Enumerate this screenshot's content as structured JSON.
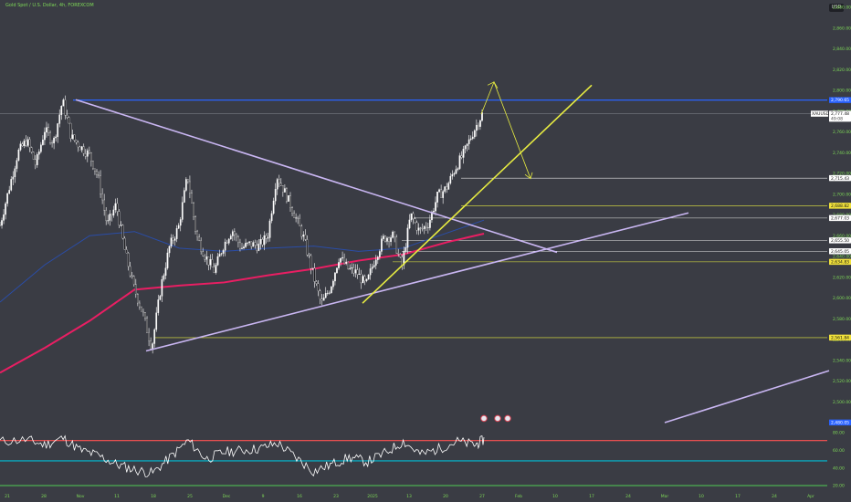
{
  "header": {
    "title": "Gold Spot / U.S. Dollar, 4h, FOREXCOM",
    "currency": "USD"
  },
  "colors": {
    "background": "#3a3c44",
    "candle": "#ffffff",
    "resistance_line": "#2962ff",
    "triangle_lines": "#c9b6f2",
    "trend_line": "#e7ec41",
    "ma_fast": "#e91e63",
    "ma_slow": "#2a4da8",
    "rsi_line": "#ffffff",
    "rsi_upper": "#ff5252",
    "rsi_mid": "#00bcd4",
    "rsi_lower": "#4caf50"
  },
  "chart_data": {
    "type": "candlestick",
    "symbol": "XAUUSD",
    "price_axis": {
      "min": 2460,
      "max": 2880,
      "ticks": [
        "2,880.00",
        "2,860.00",
        "2,840.00",
        "2,820.00",
        "2,800.00",
        "2,780.00",
        "2,760.00",
        "2,740.00",
        "2,720.00",
        "2,700.00",
        "2,680.00",
        "2,660.00",
        "2,640.00",
        "2,620.00",
        "2,600.00",
        "2,580.00",
        "2,560.00",
        "2,540.00",
        "2,520.00",
        "2,500.00",
        "2,480.00"
      ]
    },
    "time_axis": {
      "labels": [
        "21",
        "28",
        "Nov",
        "11",
        "18",
        "25",
        "Dec",
        "9",
        "16",
        "23",
        "2025",
        "13",
        "20",
        "27",
        "Feb",
        "10",
        "17",
        "24",
        "Mar",
        "10",
        "17",
        "24",
        "Apr"
      ]
    },
    "price_tags": [
      {
        "label": "2,790.65",
        "value": 2790.65,
        "style": "blue"
      },
      {
        "label": "2,777.48",
        "value": 2777.48,
        "style": "white",
        "symbol": "XAUUSD",
        "countdown": "49:08"
      },
      {
        "label": "2,715.43",
        "value": 2715.43,
        "style": "white"
      },
      {
        "label": "2,688.82",
        "value": 2688.82,
        "style": "yellow"
      },
      {
        "label": "2,677.03",
        "value": 2677.03,
        "style": "white"
      },
      {
        "label": "2,655.50",
        "value": 2655.5,
        "style": "white"
      },
      {
        "label": "2,645.05",
        "value": 2645.05,
        "style": "white"
      },
      {
        "label": "2,634.83",
        "value": 2634.83,
        "style": "yellow"
      },
      {
        "label": "2,561.84",
        "value": 2561.84,
        "style": "yellow"
      },
      {
        "label": "2,480.05",
        "value": 2480.05,
        "style": "blue"
      }
    ],
    "price_path": [
      [
        0,
        2670
      ],
      [
        1,
        2705
      ],
      [
        2,
        2740
      ],
      [
        3,
        2752
      ],
      [
        4,
        2728
      ],
      [
        5,
        2762
      ],
      [
        6,
        2750
      ],
      [
        7,
        2790
      ],
      [
        8,
        2755
      ],
      [
        9,
        2746
      ],
      [
        10,
        2738
      ],
      [
        11,
        2716
      ],
      [
        12,
        2670
      ],
      [
        13,
        2690
      ],
      [
        14,
        2645
      ],
      [
        15,
        2610
      ],
      [
        16,
        2585
      ],
      [
        17,
        2552
      ],
      [
        18,
        2610
      ],
      [
        19,
        2650
      ],
      [
        20,
        2668
      ],
      [
        21,
        2718
      ],
      [
        22,
        2660
      ],
      [
        23,
        2640
      ],
      [
        24,
        2626
      ],
      [
        25,
        2650
      ],
      [
        26,
        2666
      ],
      [
        27,
        2648
      ],
      [
        28,
        2652
      ],
      [
        29,
        2650
      ],
      [
        30,
        2660
      ],
      [
        31,
        2718
      ],
      [
        32,
        2700
      ],
      [
        33,
        2680
      ],
      [
        34,
        2658
      ],
      [
        35,
        2625
      ],
      [
        36,
        2594
      ],
      [
        37,
        2610
      ],
      [
        38,
        2640
      ],
      [
        39,
        2628
      ],
      [
        40,
        2624
      ],
      [
        41,
        2612
      ],
      [
        42,
        2638
      ],
      [
        43,
        2658
      ],
      [
        44,
        2660
      ],
      [
        45,
        2630
      ],
      [
        46,
        2680
      ],
      [
        47,
        2664
      ],
      [
        48,
        2672
      ],
      [
        49,
        2698
      ],
      [
        50,
        2706
      ],
      [
        51,
        2725
      ],
      [
        52,
        2740
      ],
      [
        53,
        2760
      ],
      [
        54,
        2777
      ]
    ],
    "ma_fast": [
      [
        0,
        2528
      ],
      [
        5,
        2552
      ],
      [
        10,
        2578
      ],
      [
        15,
        2608
      ],
      [
        20,
        2612
      ],
      [
        25,
        2615
      ],
      [
        30,
        2622
      ],
      [
        35,
        2628
      ],
      [
        40,
        2636
      ],
      [
        45,
        2642
      ],
      [
        50,
        2654
      ],
      [
        54,
        2662
      ]
    ],
    "ma_slow": [
      [
        0,
        2596
      ],
      [
        5,
        2632
      ],
      [
        10,
        2660
      ],
      [
        15,
        2664
      ],
      [
        20,
        2648
      ],
      [
        25,
        2645
      ],
      [
        30,
        2648
      ],
      [
        35,
        2650
      ],
      [
        40,
        2645
      ],
      [
        45,
        2648
      ],
      [
        50,
        2663
      ],
      [
        54,
        2675
      ]
    ],
    "rsi": {
      "levels": [
        {
          "label": "80.00",
          "value": 80
        },
        {
          "label": "60.00",
          "value": 60
        },
        {
          "label": "40.00",
          "value": 40
        },
        {
          "label": "20.00",
          "value": 20
        }
      ],
      "upper_band": 71,
      "middle_band": 48,
      "lower_band": 20,
      "values": [
        [
          0,
          70
        ],
        [
          3,
          72
        ],
        [
          5,
          66
        ],
        [
          7,
          74
        ],
        [
          9,
          60
        ],
        [
          11,
          54
        ],
        [
          13,
          44
        ],
        [
          15,
          38
        ],
        [
          17,
          34
        ],
        [
          19,
          52
        ],
        [
          21,
          71
        ],
        [
          23,
          50
        ],
        [
          25,
          58
        ],
        [
          27,
          60
        ],
        [
          29,
          62
        ],
        [
          31,
          68
        ],
        [
          33,
          52
        ],
        [
          35,
          36
        ],
        [
          37,
          44
        ],
        [
          39,
          52
        ],
        [
          41,
          47
        ],
        [
          43,
          57
        ],
        [
          45,
          70
        ],
        [
          47,
          55
        ],
        [
          49,
          62
        ],
        [
          51,
          70
        ],
        [
          53,
          66
        ],
        [
          54,
          72
        ]
      ]
    }
  }
}
